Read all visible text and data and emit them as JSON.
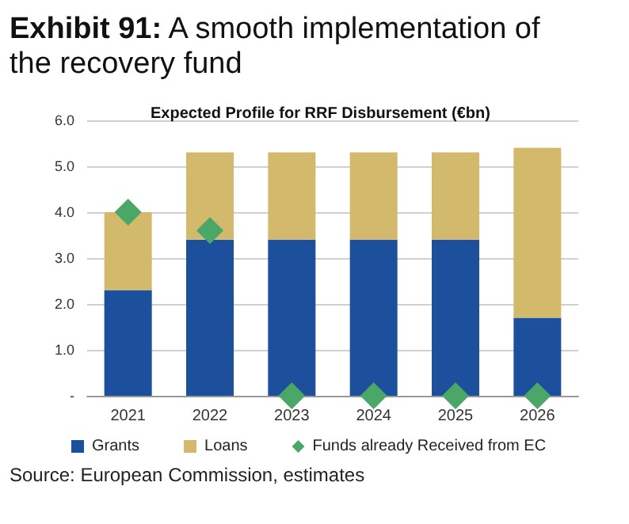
{
  "chart_data": {
    "type": "bar",
    "title": "Exhibit 91: A smooth implementation of the recovery fund",
    "subtitle": "Expected Profile for RRF Disbursement (€bn)",
    "categories": [
      "2021",
      "2022",
      "2023",
      "2024",
      "2025",
      "2026"
    ],
    "series": [
      {
        "name": "Grants",
        "color": "#1c4f9c",
        "values": [
          2.3,
          3.4,
          3.4,
          3.4,
          3.4,
          1.7
        ]
      },
      {
        "name": "Loans",
        "color": "#d2b96b",
        "values": [
          1.7,
          1.9,
          1.9,
          1.9,
          1.9,
          3.7
        ]
      },
      {
        "name": "Funds already Received from EC",
        "type": "scatter",
        "marker": "diamond",
        "color": "#4aa768",
        "values": [
          4.0,
          3.6,
          0,
          0,
          0,
          0
        ]
      }
    ],
    "stacked": true,
    "ylim": [
      0,
      6
    ],
    "yticks": [
      {
        "value": 0,
        "label": "-"
      },
      {
        "value": 1,
        "label": "1.0"
      },
      {
        "value": 2,
        "label": "2.0"
      },
      {
        "value": 3,
        "label": "3.0"
      },
      {
        "value": 4,
        "label": "4.0"
      },
      {
        "value": 5,
        "label": "5.0"
      },
      {
        "value": 6,
        "label": "6.0"
      }
    ],
    "grid": "y",
    "legend": "bottom",
    "annotations": [
      "Source: European Commission, estimates"
    ]
  }
}
